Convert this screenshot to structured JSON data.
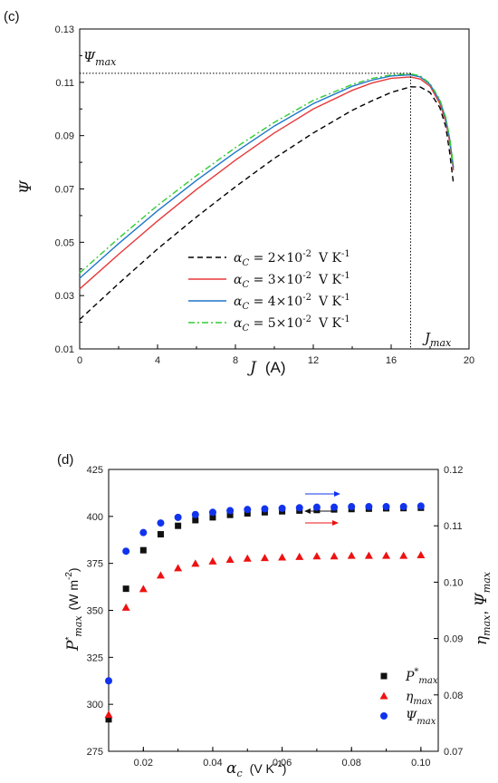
{
  "chart_data": [
    {
      "type": "line",
      "panel_label": "(c)",
      "x_label_main": "J",
      "x_label_unit": "(A)",
      "y_label": "Ψ",
      "xlim": [
        0,
        20
      ],
      "ylim": [
        0.01,
        0.13
      ],
      "x_ticks": [
        "0",
        "4",
        "8",
        "12",
        "16",
        "20"
      ],
      "y_ticks": [
        "0.01",
        "0.03",
        "0.05",
        "0.07",
        "0.09",
        "0.11",
        "0.13"
      ],
      "annotations": {
        "psi_max": {
          "main": "Ψ",
          "sub": "max",
          "value": 0.1134
        },
        "j_max": {
          "main": "J",
          "sub": "max",
          "value": 17.0
        }
      },
      "series": [
        {
          "name": "α_C = 2×10^-2 V K^-1",
          "label_main": "α",
          "label_sub": "C",
          "label_mid": " = 2×10",
          "label_exp": "-2",
          "label_unit": "V K",
          "label_unit_exp": "-1",
          "color": "#000000",
          "dash": "6,4",
          "x": [
            0,
            2,
            4,
            6,
            8,
            10,
            12,
            14,
            15,
            16,
            17,
            17.5,
            18,
            18.5,
            18.8,
            19.0,
            19.2
          ],
          "y": [
            0.021,
            0.0345,
            0.0475,
            0.0595,
            0.0708,
            0.0815,
            0.091,
            0.0995,
            0.103,
            0.1062,
            0.1083,
            0.1082,
            0.1062,
            0.1005,
            0.0935,
            0.084,
            0.072
          ]
        },
        {
          "name": "α_C = 3×10^-2 V K^-1",
          "label_main": "α",
          "label_sub": "C",
          "label_mid": " = 3×10",
          "label_exp": "-2",
          "label_unit": "V K",
          "label_unit_exp": "-1",
          "color": "#e8393a",
          "dash": "",
          "x": [
            0,
            2,
            4,
            6,
            8,
            10,
            12,
            14,
            15,
            16,
            17,
            17.5,
            18,
            18.5,
            18.8,
            19.0,
            19.2
          ],
          "y": [
            0.0325,
            0.0455,
            0.058,
            0.0698,
            0.0808,
            0.091,
            0.1,
            0.107,
            0.1097,
            0.1115,
            0.112,
            0.1112,
            0.1085,
            0.102,
            0.0955,
            0.088,
            0.077
          ]
        },
        {
          "name": "α_C = 4×10^-2 V K^-1",
          "label_main": "α",
          "label_sub": "C",
          "label_mid": " = 4×10",
          "label_exp": "-2",
          "label_unit": "V K",
          "label_unit_exp": "-1",
          "color": "#1f77c9",
          "dash": "",
          "x": [
            0,
            2,
            4,
            6,
            8,
            10,
            12,
            14,
            15,
            16,
            17,
            17.5,
            18,
            18.5,
            18.8,
            19.0,
            19.2
          ],
          "y": [
            0.0365,
            0.0495,
            0.0618,
            0.0732,
            0.0838,
            0.0936,
            0.102,
            0.1085,
            0.1108,
            0.1124,
            0.1128,
            0.112,
            0.1092,
            0.103,
            0.0965,
            0.089,
            0.078
          ]
        },
        {
          "name": "α_C = 5×10^-2 V K^-1",
          "label_main": "α",
          "label_sub": "C",
          "label_mid": " = 5×10",
          "label_exp": "-2",
          "label_unit": "V K",
          "label_unit_exp": "-1",
          "color": "#33cc33",
          "dash": "7,3,2,3",
          "x": [
            0,
            2,
            4,
            6,
            8,
            10,
            12,
            14,
            15,
            16,
            17,
            17.5,
            18,
            18.5,
            18.8,
            19.0,
            19.2
          ],
          "y": [
            0.0385,
            0.0515,
            0.0638,
            0.075,
            0.0855,
            0.095,
            0.1032,
            0.1092,
            0.1114,
            0.1128,
            0.1132,
            0.1124,
            0.1095,
            0.1035,
            0.097,
            0.0895,
            0.0785
          ]
        }
      ]
    },
    {
      "type": "scatter",
      "panel_label": "(d)",
      "x_label_main": "α",
      "x_label_sub": "c",
      "x_label_unit": "(V K",
      "x_label_unit_exp": "-1",
      "x_label_close": ")",
      "y_label_left_main": "P",
      "y_label_left_sup": "*",
      "y_label_left_sub": "max",
      "y_label_left_unit": "(W m",
      "y_label_left_unit_exp": "-2",
      "y_label_left_close": ")",
      "y_label_right_a": "η",
      "y_label_right_a_sub": "max",
      "y_label_right_sep": ", ",
      "y_label_right_b": "Ψ",
      "y_label_right_b_sub": "max",
      "xlim": [
        0.01,
        0.105
      ],
      "ylim_left": [
        275,
        425
      ],
      "ylim_right": [
        0.07,
        0.12
      ],
      "x_ticks": [
        "0.02",
        "0.04",
        "0.06",
        "0.08",
        "0.10"
      ],
      "y_ticks_left": [
        "275",
        "300",
        "325",
        "350",
        "375",
        "400",
        "425"
      ],
      "y_ticks_right": [
        "0.07",
        "0.08",
        "0.09",
        "0.10",
        "0.11",
        "0.12"
      ],
      "x": [
        0.01,
        0.015,
        0.02,
        0.025,
        0.03,
        0.035,
        0.04,
        0.045,
        0.05,
        0.055,
        0.06,
        0.065,
        0.07,
        0.075,
        0.08,
        0.085,
        0.09,
        0.095,
        0.1
      ],
      "series": [
        {
          "name": "P*max",
          "label_main": "P",
          "label_sup": "*",
          "label_sub": "max",
          "axis": "left",
          "marker": "square",
          "color": "#111111",
          "values": [
            292,
            361.5,
            382,
            390.5,
            395,
            398,
            399.5,
            400.8,
            401.6,
            402.2,
            402.7,
            403.1,
            403.4,
            403.7,
            403.9,
            404.1,
            404.3,
            404.4,
            404.6
          ]
        },
        {
          "name": "ηmax",
          "label_main": "η",
          "label_sub": "max",
          "axis": "right",
          "marker": "triangle",
          "color": "#ee1111",
          "values": [
            0.0765,
            0.0955,
            0.0988,
            0.1012,
            0.1025,
            0.1033,
            0.1037,
            0.104,
            0.1042,
            0.1043,
            0.1044,
            0.1045,
            0.1046,
            0.1046,
            0.1047,
            0.1047,
            0.1047,
            0.1047,
            0.1048
          ]
        },
        {
          "name": "Ψmax",
          "label_main": "Ψ",
          "label_sub": "max",
          "axis": "right",
          "marker": "circle",
          "color": "#1133ee",
          "values": [
            0.0825,
            0.1055,
            0.1088,
            0.1105,
            0.1115,
            0.112,
            0.1124,
            0.1127,
            0.1129,
            0.113,
            0.1131,
            0.1132,
            0.1133,
            0.1133,
            0.1134,
            0.1134,
            0.1134,
            0.1134,
            0.1135
          ]
        }
      ]
    }
  ]
}
